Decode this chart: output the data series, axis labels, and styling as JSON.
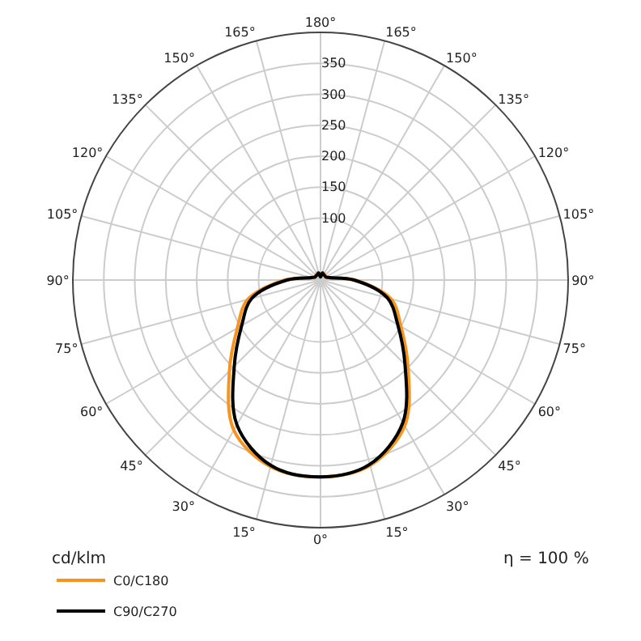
{
  "chart_data": {
    "type": "radar",
    "categories": [
      "180°",
      "165°",
      "150°",
      "135°",
      "120°",
      "105°",
      "90°",
      "75°",
      "60°",
      "45°",
      "30°",
      "15°",
      "0°",
      "15°",
      "30°",
      "45°",
      "60°",
      "75°",
      "90°",
      "105°",
      "120°",
      "135°",
      "150°",
      "165°"
    ],
    "series": [
      {
        "name": "C0/C180",
        "color": "#f7941d",
        "values": [
          5,
          12,
          12,
          10,
          10,
          15,
          56,
          118,
          150,
          200,
          272,
          310,
          318,
          312,
          280,
          208,
          155,
          122,
          58,
          15,
          10,
          10,
          12,
          12
        ]
      },
      {
        "name": "C90/C270",
        "color": "#000000",
        "values": [
          5,
          12,
          10,
          10,
          10,
          15,
          54,
          112,
          144,
          193,
          266,
          308,
          318,
          310,
          270,
          197,
          147,
          115,
          54,
          15,
          10,
          10,
          10,
          12
        ]
      }
    ],
    "ylim": [
      0,
      400
    ],
    "yticks": [
      100,
      150,
      200,
      250,
      300,
      350
    ],
    "grid": true,
    "legend": "bottom left",
    "annotations": [
      "cd/klm",
      "η = 100 %"
    ]
  }
}
